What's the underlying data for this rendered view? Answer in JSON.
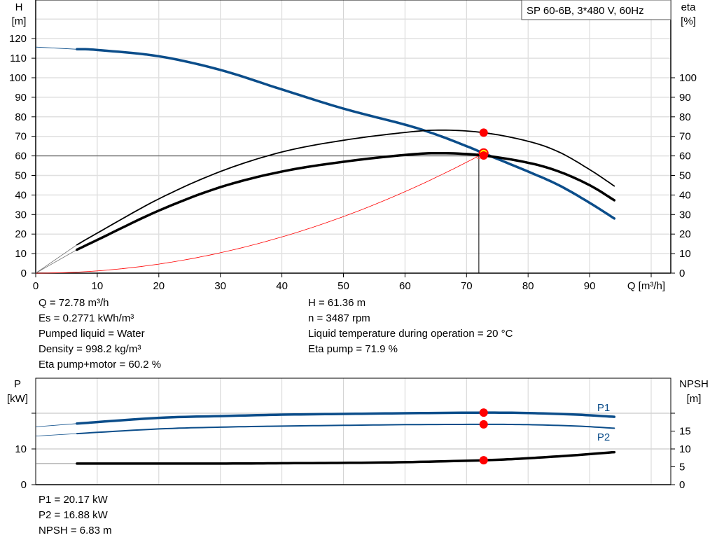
{
  "chart_data": [
    {
      "type": "line",
      "title": "SP 60-6B, 3*480 V, 60Hz",
      "xlabel": "Q [m³/h]",
      "ylabel_left": [
        "H",
        "[m]"
      ],
      "ylabel_right": [
        "eta",
        "[%]"
      ],
      "xlim": [
        0,
        103
      ],
      "ylim_left": [
        0,
        140
      ],
      "ylim_right": [
        0,
        140
      ],
      "xticks": [
        0,
        10,
        20,
        30,
        40,
        50,
        60,
        70,
        80,
        90
      ],
      "yticks_left": [
        0,
        10,
        20,
        30,
        40,
        50,
        60,
        70,
        80,
        90,
        100,
        110,
        120
      ],
      "yticks_right": [
        0,
        10,
        20,
        30,
        40,
        50,
        60,
        70,
        80,
        90,
        100
      ],
      "grid": true,
      "colors": {
        "head": "#0b4d8a",
        "eta": "#000000",
        "system": "#ff0000",
        "marker": "#ff0000",
        "duty_marker": "#ffff00"
      },
      "series": [
        {
          "id": "head",
          "axis": "left",
          "extension": [
            [
              0,
              115.7
            ],
            [
              6.7,
              114.6
            ]
          ],
          "points": [
            [
              6.7,
              114.6
            ],
            [
              10,
              114.2
            ],
            [
              20,
              111
            ],
            [
              30,
              104
            ],
            [
              40,
              94
            ],
            [
              50,
              84.2
            ],
            [
              60,
              76
            ],
            [
              65,
              71
            ],
            [
              70,
              65
            ],
            [
              72.78,
              61.36
            ],
            [
              80,
              52
            ],
            [
              85,
              45
            ],
            [
              90,
              36
            ],
            [
              94,
              28
            ]
          ]
        },
        {
          "id": "eta-pump",
          "axis": "right",
          "extension": [
            [
              0,
              0
            ],
            [
              6.7,
              14.5
            ]
          ],
          "points": [
            [
              6.7,
              14.5
            ],
            [
              10,
              20.5
            ],
            [
              20,
              38
            ],
            [
              30,
              52
            ],
            [
              40,
              62
            ],
            [
              50,
              68
            ],
            [
              60,
              72
            ],
            [
              66,
              73.2
            ],
            [
              72.78,
              71.9
            ],
            [
              80,
              67.5
            ],
            [
              85,
              62
            ],
            [
              90,
              53
            ],
            [
              94,
              44.6
            ]
          ]
        },
        {
          "id": "eta-pump-motor",
          "axis": "right",
          "extension": [
            [
              0,
              0
            ],
            [
              6.7,
              12
            ]
          ],
          "points": [
            [
              6.7,
              12
            ],
            [
              10,
              17
            ],
            [
              20,
              32
            ],
            [
              30,
              44
            ],
            [
              40,
              52
            ],
            [
              50,
              57
            ],
            [
              60,
              60.5
            ],
            [
              66,
              61.4
            ],
            [
              72.78,
              60.2
            ],
            [
              80,
              56.5
            ],
            [
              85,
              52
            ],
            [
              90,
              45
            ],
            [
              94,
              37.3
            ]
          ]
        },
        {
          "id": "system-curve",
          "axis": "left",
          "quadratic_through": [
            72.78,
            61.36
          ]
        }
      ],
      "duty_point": {
        "Q": 72.78,
        "H": 61.36,
        "eta_pump": 71.9,
        "eta_pump_motor": 60.2
      },
      "requested_point": {
        "Q": 72,
        "H": 60
      }
    },
    {
      "type": "line",
      "ylabel_left": [
        "P",
        "[kW]"
      ],
      "ylabel_right": [
        "NPSH",
        "[m]"
      ],
      "xlim": [
        0,
        103
      ],
      "ylim_left": [
        0,
        30
      ],
      "ylim_right": [
        0,
        30
      ],
      "yticks_left": [
        0,
        10,
        20
      ],
      "yticks_left_labels": [
        "0",
        "10",
        ""
      ],
      "yticks_right": [
        0,
        5,
        10,
        15,
        20
      ],
      "yticks_right_labels": [
        "0",
        "5",
        "10",
        "15",
        ""
      ],
      "grid": true,
      "series": [
        {
          "id": "P1",
          "name": "P1",
          "extension": [
            [
              0,
              16.2
            ],
            [
              6.7,
              17.1
            ]
          ],
          "points": [
            [
              6.7,
              17.1
            ],
            [
              20,
              18.7
            ],
            [
              30,
              19.2
            ],
            [
              40,
              19.6
            ],
            [
              50,
              19.8
            ],
            [
              60,
              20.0
            ],
            [
              72.78,
              20.17
            ],
            [
              80,
              20.05
            ],
            [
              88,
              19.6
            ],
            [
              94,
              19.0
            ]
          ]
        },
        {
          "id": "P2",
          "name": "P2",
          "extension": [
            [
              0,
              13.6
            ],
            [
              6.7,
              14.3
            ]
          ],
          "points": [
            [
              6.7,
              14.3
            ],
            [
              20,
              15.6
            ],
            [
              30,
              16.1
            ],
            [
              40,
              16.4
            ],
            [
              50,
              16.6
            ],
            [
              60,
              16.8
            ],
            [
              72.78,
              16.88
            ],
            [
              80,
              16.8
            ],
            [
              88,
              16.4
            ],
            [
              94,
              15.8
            ]
          ]
        },
        {
          "id": "NPSH",
          "extension": [
            [
              0,
              5.9
            ],
            [
              6.7,
              5.9
            ]
          ],
          "points": [
            [
              6.7,
              5.9
            ],
            [
              20,
              5.9
            ],
            [
              30,
              5.9
            ],
            [
              40,
              6.0
            ],
            [
              50,
              6.1
            ],
            [
              60,
              6.3
            ],
            [
              72.78,
              6.83
            ],
            [
              80,
              7.4
            ],
            [
              88,
              8.3
            ],
            [
              94,
              9.1
            ]
          ]
        }
      ],
      "duty_point": {
        "Q": 72.78,
        "P1": 20.17,
        "P2": 16.88,
        "NPSH": 6.83
      }
    }
  ],
  "info": {
    "left": [
      "Q = 72.78 m³/h",
      "Es = 0.2771 kWh/m³",
      "Pumped liquid = Water",
      "Density = 998.2 kg/m³",
      "Eta pump+motor = 60.2 %"
    ],
    "right": [
      "H = 61.36 m",
      "n = 3487 rpm",
      "Liquid temperature during operation = 20 °C",
      "Eta pump = 71.9 %"
    ],
    "bottom": [
      "P1 = 20.17 kW",
      "P2 = 16.88 kW",
      "NPSH = 6.83 m"
    ]
  }
}
